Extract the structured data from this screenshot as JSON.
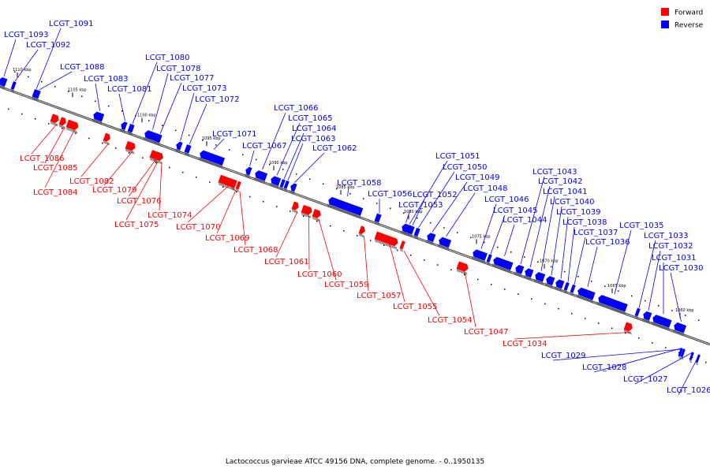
{
  "caption": "Lactococcus garvieae ATCC 49156 DNA, complete genome. - 0..1950135",
  "legend": [
    {
      "label": "Forward",
      "color": "#ff0000"
    },
    {
      "label": "Reverse",
      "color": "#0000ff"
    }
  ],
  "colors": {
    "forward": "#ff0000",
    "reverse": "#0000ff",
    "backbone": "#808080"
  },
  "ticks": [
    "1110 kbp",
    "1105 kbp",
    "1100 kbp",
    "1095 kbp",
    "1090 kbp",
    "1085 kbp",
    "1080 kbp",
    "1075 kbp",
    "1070 kbp",
    "1065 kbp",
    "1060 kbp"
  ],
  "genes": [
    {
      "label": "LCGT_1093",
      "strand": "reverse"
    },
    {
      "label": "LCGT_1092",
      "strand": "reverse"
    },
    {
      "label": "LCGT_1091",
      "strand": "reverse"
    },
    {
      "label": "LCGT_1088",
      "strand": "reverse"
    },
    {
      "label": "LCGT_1083",
      "strand": "reverse"
    },
    {
      "label": "LCGT_1081",
      "strand": "reverse"
    },
    {
      "label": "LCGT_1080",
      "strand": "reverse"
    },
    {
      "label": "LCGT_1078",
      "strand": "reverse"
    },
    {
      "label": "LCGT_1077",
      "strand": "reverse"
    },
    {
      "label": "LCGT_1073",
      "strand": "reverse"
    },
    {
      "label": "LCGT_1072",
      "strand": "reverse"
    },
    {
      "label": "LCGT_1071",
      "strand": "reverse"
    },
    {
      "label": "LCGT_1067",
      "strand": "reverse"
    },
    {
      "label": "LCGT_1066",
      "strand": "reverse"
    },
    {
      "label": "LCGT_1065",
      "strand": "reverse"
    },
    {
      "label": "LCGT_1064",
      "strand": "reverse"
    },
    {
      "label": "LCGT_1063",
      "strand": "reverse"
    },
    {
      "label": "LCGT_1062",
      "strand": "reverse"
    },
    {
      "label": "LCGT_1058",
      "strand": "reverse"
    },
    {
      "label": "LCGT_1056",
      "strand": "reverse"
    },
    {
      "label": "LCGT_1051",
      "strand": "reverse"
    },
    {
      "label": "LCGT_1050",
      "strand": "reverse"
    },
    {
      "label": "LCGT_1049",
      "strand": "reverse"
    },
    {
      "label": "LCGT_1048",
      "strand": "reverse"
    },
    {
      "label": "LCGT_1052",
      "strand": "reverse"
    },
    {
      "label": "LCGT_1053",
      "strand": "reverse"
    },
    {
      "label": "LCGT_1046",
      "strand": "reverse"
    },
    {
      "label": "LCGT_1045",
      "strand": "reverse"
    },
    {
      "label": "LCGT_1044",
      "strand": "reverse"
    },
    {
      "label": "LCGT_1043",
      "strand": "reverse"
    },
    {
      "label": "LCGT_1042",
      "strand": "reverse"
    },
    {
      "label": "LCGT_1041",
      "strand": "reverse"
    },
    {
      "label": "LCGT_1040",
      "strand": "reverse"
    },
    {
      "label": "LCGT_1039",
      "strand": "reverse"
    },
    {
      "label": "LCGT_1038",
      "strand": "reverse"
    },
    {
      "label": "LCGT_1037",
      "strand": "reverse"
    },
    {
      "label": "LCGT_1036",
      "strand": "reverse"
    },
    {
      "label": "LCGT_1035",
      "strand": "reverse"
    },
    {
      "label": "LCGT_1033",
      "strand": "reverse"
    },
    {
      "label": "LCGT_1032",
      "strand": "reverse"
    },
    {
      "label": "LCGT_1031",
      "strand": "reverse"
    },
    {
      "label": "LCGT_1030",
      "strand": "reverse"
    },
    {
      "label": "LCGT_1029",
      "strand": "reverse"
    },
    {
      "label": "LCGT_1028",
      "strand": "reverse"
    },
    {
      "label": "LCGT_1027",
      "strand": "reverse"
    },
    {
      "label": "LCGT_1026",
      "strand": "reverse"
    },
    {
      "label": "LCGT_1086",
      "strand": "forward"
    },
    {
      "label": "LCGT_1085",
      "strand": "forward"
    },
    {
      "label": "LCGT_1084",
      "strand": "forward"
    },
    {
      "label": "LCGT_1082",
      "strand": "forward"
    },
    {
      "label": "LCGT_1079",
      "strand": "forward"
    },
    {
      "label": "LCGT_1076",
      "strand": "forward"
    },
    {
      "label": "LCGT_1074",
      "strand": "forward"
    },
    {
      "label": "LCGT_1075",
      "strand": "forward"
    },
    {
      "label": "LCGT_1070",
      "strand": "forward"
    },
    {
      "label": "LCGT_1069",
      "strand": "forward"
    },
    {
      "label": "LCGT_1068",
      "strand": "forward"
    },
    {
      "label": "LCGT_1061",
      "strand": "forward"
    },
    {
      "label": "LCGT_1060",
      "strand": "forward"
    },
    {
      "label": "LCGT_1059",
      "strand": "forward"
    },
    {
      "label": "LCGT_1057",
      "strand": "forward"
    },
    {
      "label": "LCGT_1055",
      "strand": "forward"
    },
    {
      "label": "LCGT_1054",
      "strand": "forward"
    },
    {
      "label": "LCGT_1047",
      "strand": "forward"
    },
    {
      "label": "LCGT_1034",
      "strand": "forward"
    }
  ]
}
